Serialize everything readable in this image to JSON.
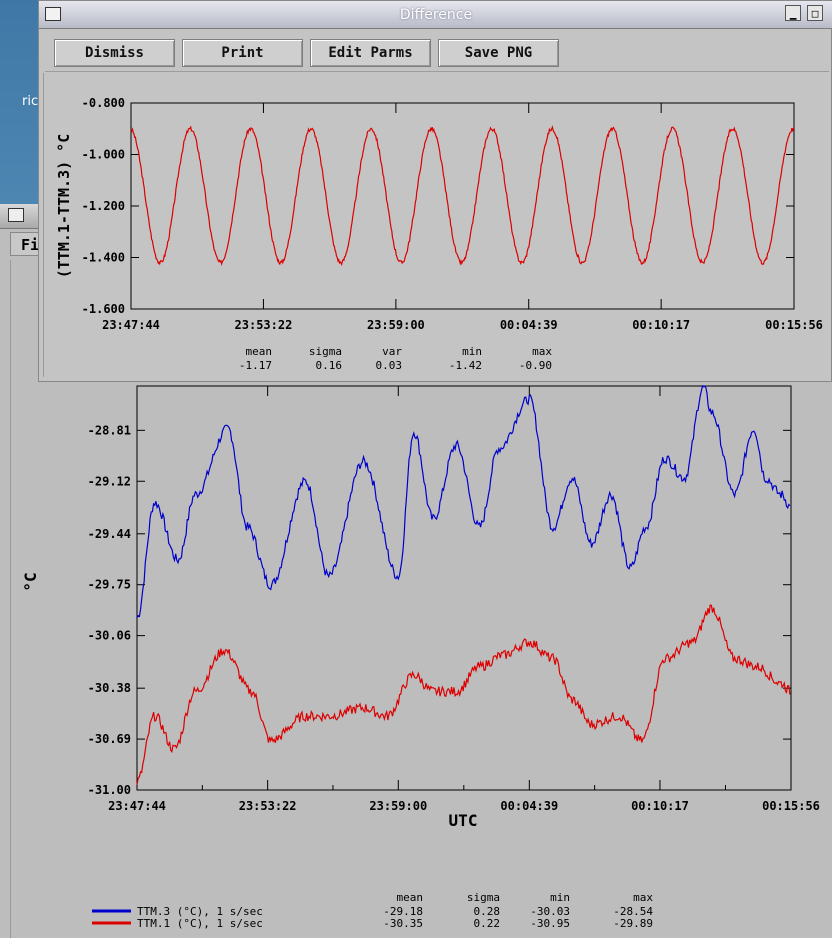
{
  "desktop": {
    "label": "ric"
  },
  "back_window": {
    "menu_label": "Fi",
    "chart_data": {
      "type": "line",
      "xlabel": "UTC",
      "ylabel": "°C",
      "x_ticks": [
        "23:47:44",
        "23:53:22",
        "23:59:00",
        "00:04:39",
        "00:10:17",
        "00:15:56"
      ],
      "y_ticks": [
        "-28.81",
        "-29.12",
        "-29.44",
        "-29.75",
        "-30.06",
        "-30.38",
        "-30.69",
        "-31.00"
      ],
      "series": [
        {
          "name": "TTM.3 (°C), 1 s/sec",
          "color": "#0000cc",
          "x": [
            "23:47:44",
            "23:48:30",
            "23:49:30",
            "23:50:15",
            "23:51:40",
            "23:52:30",
            "23:53:30",
            "23:55:00",
            "23:56:00",
            "23:57:30",
            "23:59:00",
            "23:59:40",
            "24:00:30",
            "00:01:30",
            "00:02:30",
            "00:03:20",
            "00:04:39",
            "00:05:40",
            "00:06:30",
            "00:07:20",
            "00:08:10",
            "00:09:00",
            "00:09:40",
            "00:10:30",
            "00:11:20",
            "00:12:10",
            "00:12:30",
            "00:13:30",
            "00:14:20",
            "00:14:50",
            "00:15:30",
            "00:15:56"
          ],
          "values": [
            -29.95,
            -29.25,
            -29.6,
            -29.2,
            -28.8,
            -29.4,
            -29.75,
            -29.12,
            -29.7,
            -29.0,
            -29.7,
            -28.82,
            -29.35,
            -28.9,
            -29.4,
            -28.92,
            -28.62,
            -29.4,
            -29.1,
            -29.5,
            -29.2,
            -29.65,
            -29.4,
            -28.98,
            -29.1,
            -28.55,
            -28.7,
            -29.2,
            -28.8,
            -29.1,
            -29.2,
            -29.28
          ]
        },
        {
          "name": "TTM.1 (°C), 1 s/sec",
          "color": "#dd0000",
          "x": [
            "23:47:44",
            "23:48:30",
            "23:49:20",
            "23:50:15",
            "23:51:30",
            "23:52:40",
            "23:53:30",
            "23:55:00",
            "23:56:00",
            "23:57:30",
            "23:58:30",
            "23:59:40",
            "24:00:30",
            "00:01:30",
            "00:02:30",
            "00:03:30",
            "00:04:39",
            "00:05:40",
            "00:06:30",
            "00:07:20",
            "00:08:30",
            "00:09:30",
            "00:10:30",
            "00:11:40",
            "00:12:30",
            "00:13:30",
            "00:14:30",
            "00:15:30",
            "00:15:56"
          ],
          "values": [
            -30.95,
            -30.55,
            -30.75,
            -30.4,
            -30.15,
            -30.4,
            -30.7,
            -30.55,
            -30.55,
            -30.5,
            -30.55,
            -30.3,
            -30.4,
            -30.4,
            -30.25,
            -30.18,
            -30.1,
            -30.2,
            -30.45,
            -30.6,
            -30.55,
            -30.7,
            -30.2,
            -30.1,
            -29.89,
            -30.2,
            -30.25,
            -30.35,
            -30.4
          ]
        }
      ]
    },
    "stats": {
      "headers": [
        "mean",
        "sigma",
        "min",
        "max"
      ],
      "rows": [
        {
          "label": "TTM.3 (°C), 1 s/sec",
          "color": "#0000cc",
          "values": [
            "-29.18",
            "0.28",
            "-30.03",
            "-28.54"
          ]
        },
        {
          "label": "TTM.1 (°C), 1 s/sec",
          "color": "#dd0000",
          "values": [
            "-30.35",
            "0.22",
            "-30.95",
            "-29.89"
          ]
        }
      ]
    }
  },
  "front_window": {
    "title": "Difference",
    "buttons": {
      "dismiss": "Dismiss",
      "print": "Print",
      "edit": "Edit Parms",
      "save": "Save PNG"
    },
    "chart_data": {
      "type": "line",
      "xlabel": "",
      "ylabel": "(TTM.1-TTM.3) °C",
      "x_ticks": [
        "23:47:44",
        "23:53:22",
        "23:59:00",
        "00:04:39",
        "00:10:17",
        "00:15:56"
      ],
      "y_ticks": [
        "-0.800",
        "-1.000",
        "-1.200",
        "-1.400",
        "-1.600"
      ],
      "ylim": [
        -1.6,
        -0.8
      ],
      "series": [
        {
          "name": "TTM.1-TTM.3",
          "color": "#dd0000",
          "periods": 11,
          "mean": -1.17,
          "min": -1.42,
          "max": -0.9
        }
      ]
    },
    "stats": {
      "headers": [
        "mean",
        "sigma",
        "var",
        "min",
        "max"
      ],
      "values": [
        "-1.17",
        "0.16",
        "0.03",
        "-1.42",
        "-0.90"
      ]
    }
  }
}
